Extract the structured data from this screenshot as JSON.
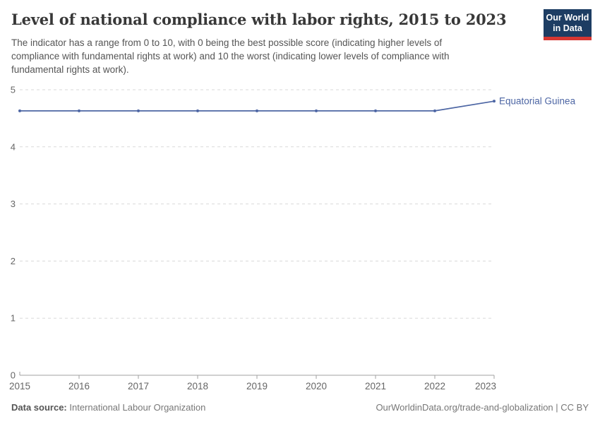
{
  "header": {
    "subtitle_lines": [
      "The indicator has a range from 0 to 10, with 0 being the best possible score (indicating higher levels of",
      "compliance with fundamental rights at work) and 10 the worst (indicating lower levels of compliance with",
      "fundamental rights at work)."
    ],
    "logo": {
      "line1": "Our World",
      "line2": "in Data",
      "bg_color": "#1d3d63",
      "accent_color": "#d73732"
    }
  },
  "chart_data": {
    "type": "line",
    "title": "Level of national compliance with labor rights, 2015 to 2023",
    "x": [
      2015,
      2016,
      2017,
      2018,
      2019,
      2020,
      2021,
      2022,
      2023
    ],
    "series": [
      {
        "name": "Equatorial Guinea",
        "values": [
          4.63,
          4.63,
          4.63,
          4.63,
          4.63,
          4.63,
          4.63,
          4.63,
          4.8
        ],
        "color": "#4d66a4"
      }
    ],
    "xlabel": "",
    "ylabel": "",
    "ylim": [
      0,
      5
    ],
    "yticks": [
      0,
      1,
      2,
      3,
      4,
      5
    ],
    "xticks": [
      2015,
      2016,
      2017,
      2018,
      2019,
      2020,
      2021,
      2022,
      2023
    ],
    "grid": "horizontal-dashed",
    "gridline_color": "#d9d9d9",
    "axis_color": "#a0a0a0",
    "tick_label_color": "#666666",
    "legend": "end-of-line-label"
  },
  "footer": {
    "source_label": "Data source:",
    "source_value": "International Labour Organization",
    "credit": "OurWorldinData.org/trade-and-globalization | CC BY"
  }
}
